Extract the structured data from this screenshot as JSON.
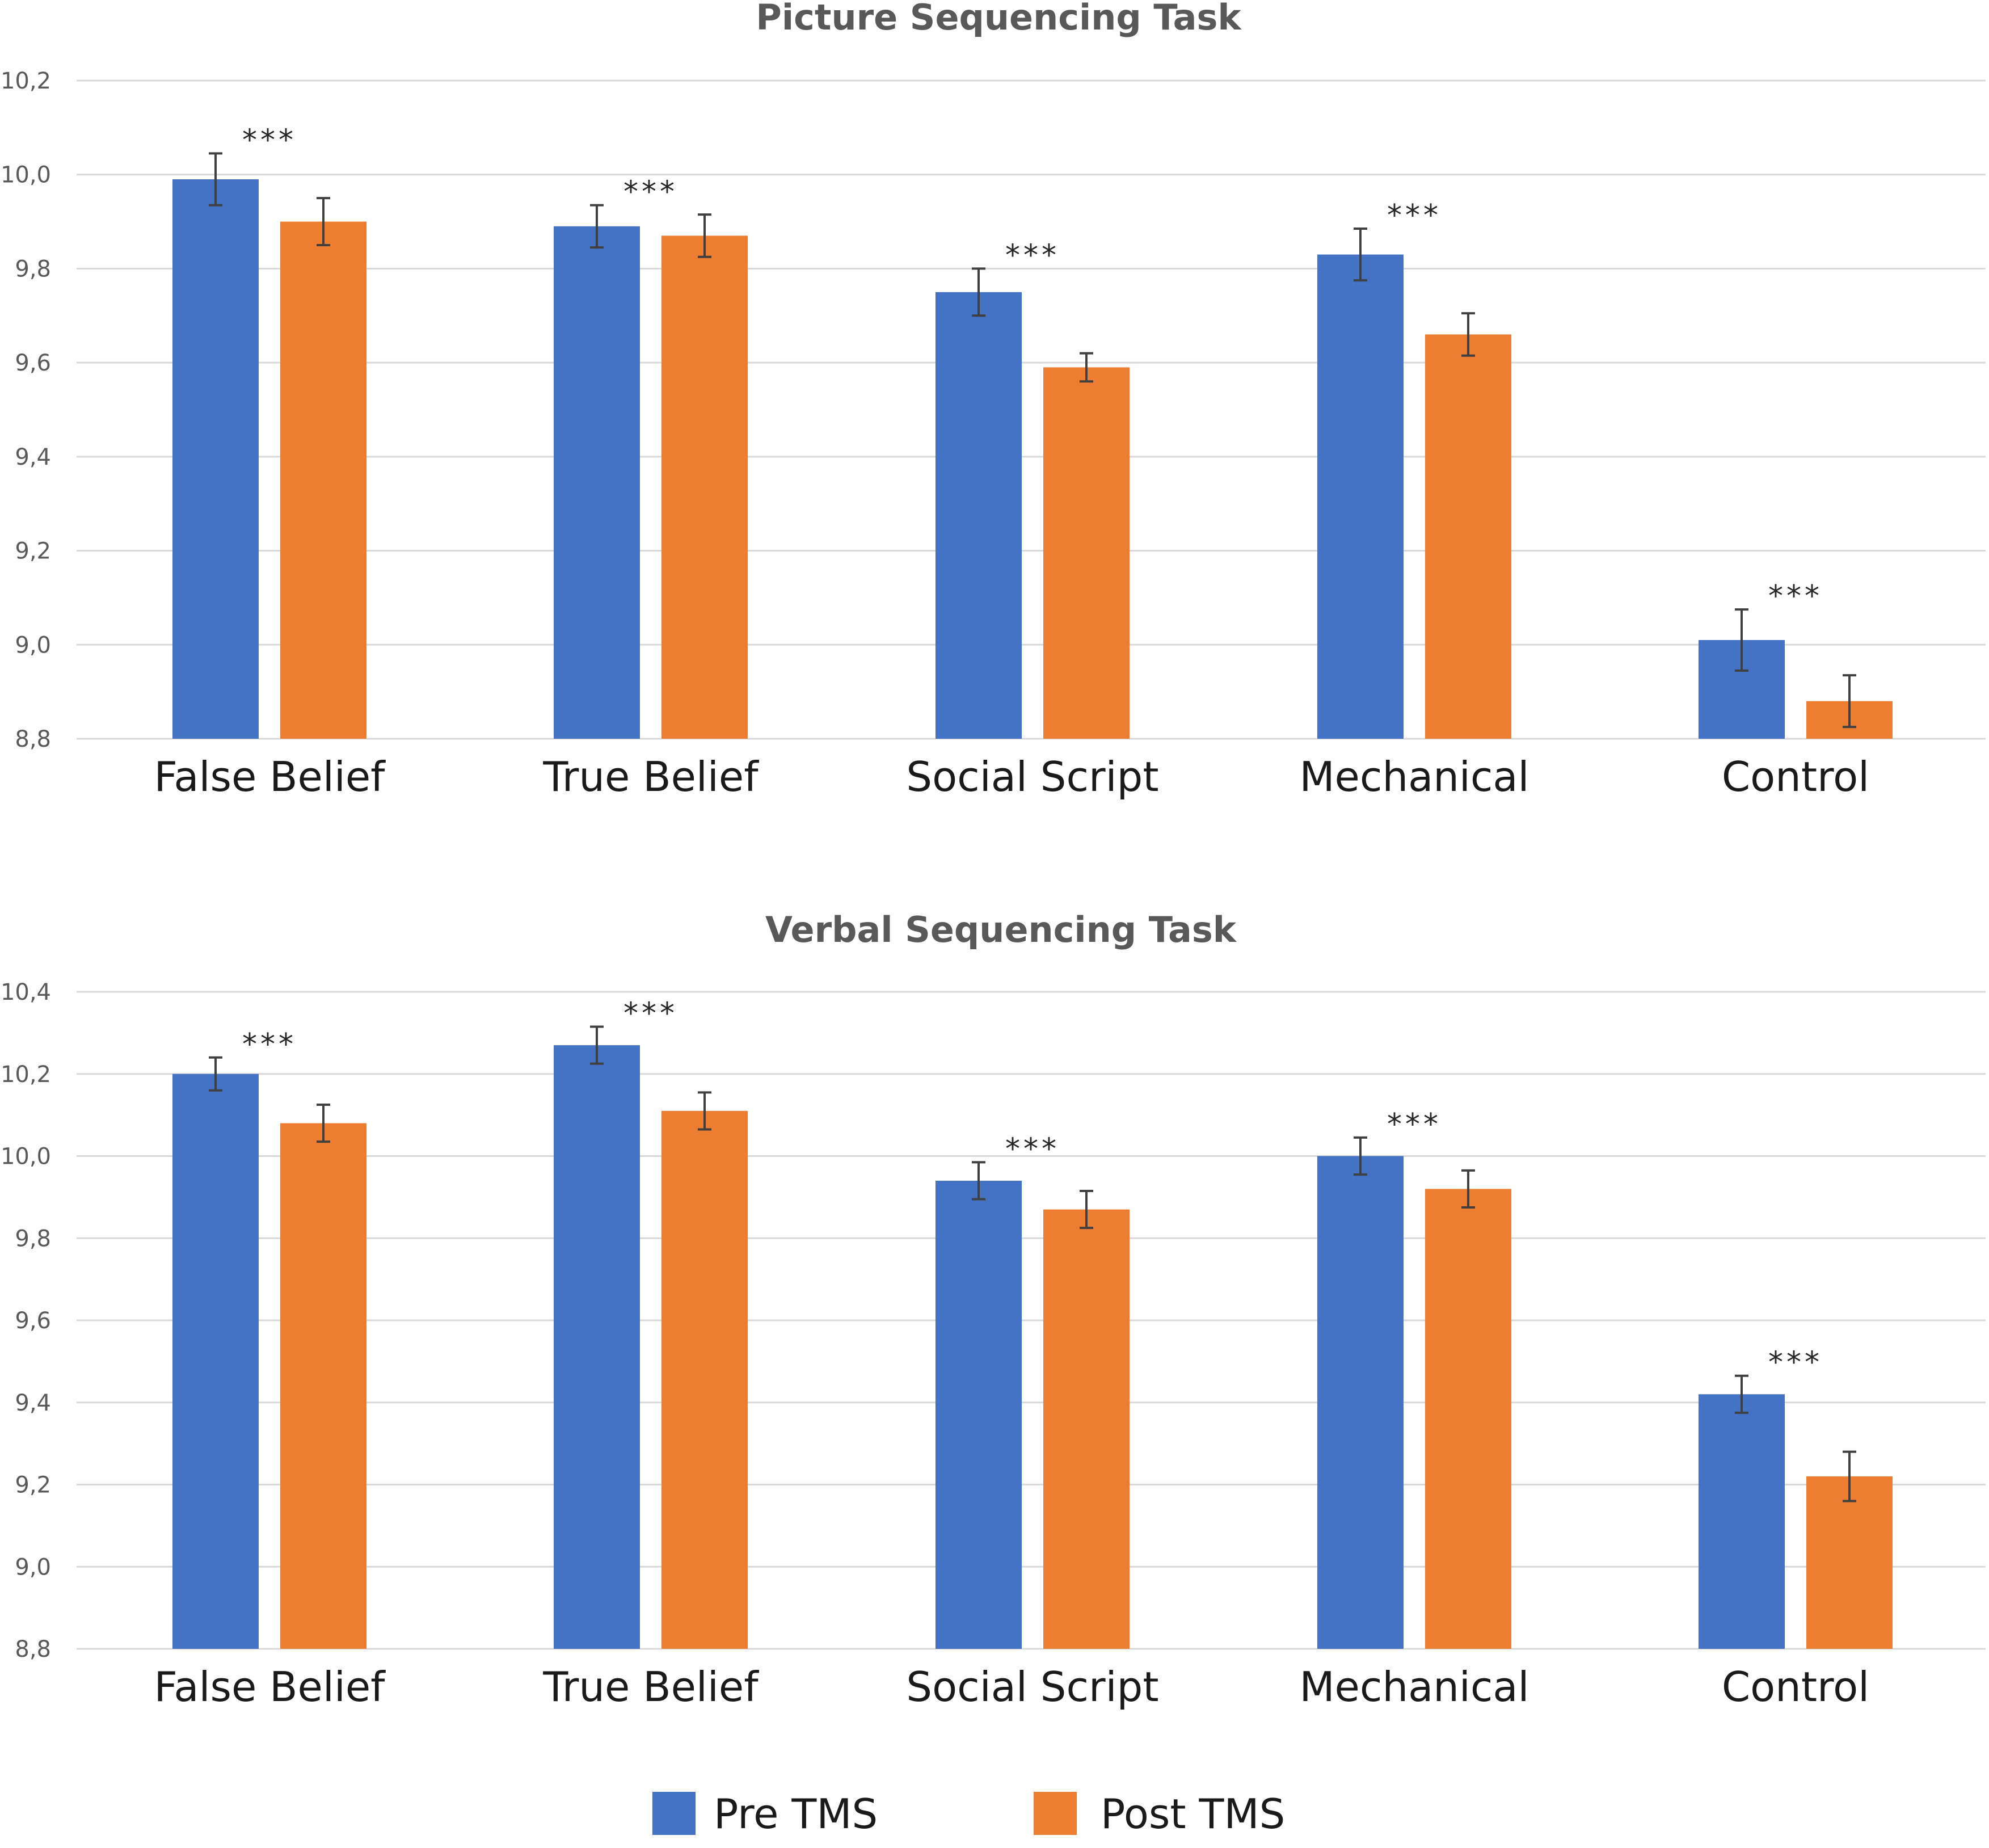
{
  "colors": {
    "pre": "#4472C4",
    "post": "#ED7D31",
    "grid": "#D9D9D9",
    "text": "#595959"
  },
  "legend": {
    "items": [
      {
        "label": "Pre TMS",
        "color": "#4472C4"
      },
      {
        "label": "Post TMS",
        "color": "#ED7D31"
      }
    ]
  },
  "chart_data": [
    {
      "type": "bar",
      "title": "Picture Sequencing Task",
      "categories": [
        "False Belief",
        "True Belief",
        "Social Script",
        "Mechanical",
        "Control"
      ],
      "ylim": [
        8.8,
        10.2
      ],
      "yticks": [
        8.8,
        9.0,
        9.2,
        9.4,
        9.6,
        9.8,
        10.0,
        10.2
      ],
      "ytick_labels": [
        "8,8",
        "9,0",
        "9,2",
        "9,4",
        "9,6",
        "9,8",
        "10,0",
        "10,2"
      ],
      "grid": true,
      "series": [
        {
          "name": "Pre TMS",
          "values": [
            9.99,
            9.89,
            9.75,
            9.83,
            9.01
          ],
          "errors": [
            0.055,
            0.045,
            0.05,
            0.055,
            0.065
          ]
        },
        {
          "name": "Post TMS",
          "values": [
            9.9,
            9.87,
            9.59,
            9.66,
            8.88
          ],
          "errors": [
            0.05,
            0.045,
            0.03,
            0.045,
            0.055
          ]
        }
      ],
      "significance": [
        "***",
        "***",
        "***",
        "***",
        "***"
      ]
    },
    {
      "type": "bar",
      "title": "Verbal Sequencing Task",
      "categories": [
        "False Belief",
        "True Belief",
        "Social Script",
        "Mechanical",
        "Control"
      ],
      "ylim": [
        8.8,
        10.4
      ],
      "yticks": [
        8.8,
        9.0,
        9.2,
        9.4,
        9.6,
        9.8,
        10.0,
        10.2,
        10.4
      ],
      "ytick_labels": [
        "8,8",
        "9,0",
        "9,2",
        "9,4",
        "9,6",
        "9,8",
        "10,0",
        "10,2",
        "10,4"
      ],
      "grid": true,
      "series": [
        {
          "name": "Pre TMS",
          "values": [
            10.2,
            10.27,
            9.94,
            10.0,
            9.42
          ],
          "errors": [
            0.04,
            0.045,
            0.045,
            0.045,
            0.045
          ]
        },
        {
          "name": "Post TMS",
          "values": [
            10.08,
            10.11,
            9.87,
            9.92,
            9.22
          ],
          "errors": [
            0.045,
            0.045,
            0.045,
            0.045,
            0.06
          ]
        }
      ],
      "significance": [
        "***",
        "***",
        "***",
        "***",
        "***"
      ]
    }
  ]
}
